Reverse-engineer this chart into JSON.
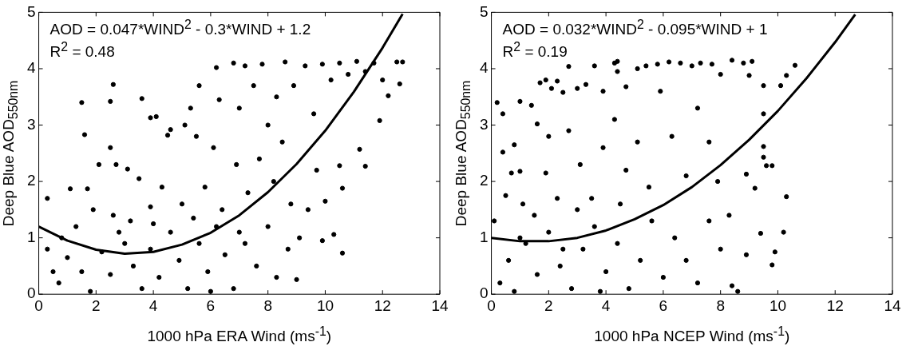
{
  "chart_data": [
    {
      "type": "scatter",
      "xlabel": "1000 hPa ERA Wind (ms$^{-1}$)",
      "ylabel": "Deep Blue AOD$_{550nm}$",
      "xlim": [
        0,
        14
      ],
      "ylim": [
        0,
        5
      ],
      "xticks": [
        0,
        2,
        4,
        6,
        8,
        10,
        12,
        14
      ],
      "yticks": [
        0,
        1,
        2,
        3,
        4,
        5
      ],
      "grid": false,
      "legend": false,
      "marker": "circle",
      "annotations": [
        "AOD = 0.047*WIND$^{2}$ - 0.3*WIND + 1.2",
        "R$^{2}$ = 0.48"
      ],
      "series": [
        {
          "type": "scatter",
          "color": "#000000",
          "x": [
            0.3,
            1.1,
            1.5,
            1.6,
            1.7,
            2.1,
            2.5,
            2.5,
            2.6,
            2.7,
            3.1,
            3.6,
            3.5,
            3.9,
            4.1,
            4.5,
            4.6,
            5.1,
            5.3,
            5.6,
            5.5,
            6.2,
            6.3,
            6.8,
            6.1,
            7.2,
            7.0,
            7.5,
            7.8,
            8.0,
            8.3,
            8.6,
            8.5,
            8.9,
            9.3,
            9.6,
            9.9,
            10.2,
            10.5,
            10.8,
            11.1,
            11.4,
            11.7,
            12.0,
            12.2,
            12.5,
            12.6,
            12.7,
            11.9,
            11.2,
            11.4,
            10.6,
            10.5,
            10.0,
            10.3,
            10.6,
            9.9,
            9.0,
            9.4,
            9.7,
            8.8,
            8.2,
            7.7,
            7.3,
            6.9,
            6.4,
            5.8,
            5.0,
            4.3,
            3.9,
            3.2,
            2.6,
            1.9,
            1.3,
            0.8,
            0.3,
            0.5,
            0.7,
            1.0,
            1.5,
            1.8,
            2.2,
            2.5,
            3.0,
            3.3,
            3.6,
            3.9,
            4.2,
            4.6,
            4.9,
            5.2,
            5.6,
            5.9,
            6.2,
            6.5,
            6.8,
            7.2,
            7.6,
            8.0,
            8.3,
            8.7,
            9.1,
            6.0,
            2.8,
            4.0,
            5.4,
            7.0
          ],
          "values": [
            1.7,
            1.87,
            3.4,
            2.83,
            1.87,
            2.3,
            3.42,
            2.6,
            3.72,
            2.3,
            2.22,
            3.47,
            2.05,
            3.13,
            3.15,
            2.82,
            2.92,
            3.0,
            3.3,
            3.7,
            2.8,
            4.02,
            3.45,
            4.1,
            2.6,
            4.05,
            3.3,
            3.7,
            4.08,
            3.0,
            3.5,
            4.12,
            2.7,
            3.7,
            4.05,
            3.2,
            4.08,
            3.8,
            4.1,
            3.9,
            4.13,
            3.95,
            4.1,
            3.8,
            3.52,
            4.12,
            3.73,
            4.12,
            3.08,
            2.57,
            2.27,
            1.88,
            2.28,
            1.65,
            1.06,
            0.73,
            0.95,
            0.26,
            1.5,
            2.2,
            1.6,
            2.0,
            2.4,
            1.8,
            2.3,
            1.5,
            1.9,
            1.6,
            1.9,
            1.55,
            1.3,
            1.4,
            1.5,
            1.2,
            1.0,
            0.8,
            0.4,
            0.2,
            0.65,
            0.4,
            0.05,
            0.75,
            0.35,
            0.9,
            0.5,
            0.1,
            0.8,
            0.3,
            1.1,
            0.6,
            0.1,
            0.9,
            0.4,
            1.2,
            0.7,
            0.1,
            0.9,
            0.5,
            1.2,
            0.3,
            0.8,
            1.0,
            0.05,
            1.1,
            1.25,
            1.35,
            1.1
          ]
        },
        {
          "type": "line",
          "color": "#000000",
          "marker": "none",
          "x": [
            0,
            1,
            2,
            3,
            4,
            5,
            6,
            7,
            8,
            9,
            10,
            11,
            12,
            12.7
          ],
          "values": [
            1.2,
            0.95,
            0.79,
            0.72,
            0.75,
            0.88,
            1.09,
            1.4,
            1.81,
            2.31,
            2.9,
            3.59,
            4.37,
            4.97
          ]
        }
      ]
    },
    {
      "type": "scatter",
      "xlabel": "1000 hPa NCEP Wind (ms$^{-1}$)",
      "ylabel": "Deep Blue AOD$_{550nm}$",
      "xlim": [
        0,
        14
      ],
      "ylim": [
        0,
        5
      ],
      "xticks": [
        0,
        2,
        4,
        6,
        8,
        10,
        12,
        14
      ],
      "yticks": [
        0,
        1,
        2,
        3,
        4,
        5
      ],
      "grid": false,
      "legend": false,
      "marker": "circle",
      "annotations": [
        "AOD = 0.032*WIND$^{2}$ - 0.095*WIND + 1",
        "R$^{2}$ = 0.19"
      ],
      "series": [
        {
          "type": "scatter",
          "color": "#000000",
          "x": [
            0.1,
            0.2,
            0.4,
            0.4,
            0.5,
            0.7,
            1.0,
            1.0,
            0.8,
            1.4,
            1.6,
            1.7,
            1.9,
            2.1,
            2.3,
            2.0,
            2.5,
            2.7,
            3.0,
            3.3,
            3.6,
            3.9,
            4.3,
            4.4,
            4.4,
            4.7,
            5.1,
            5.4,
            5.8,
            6.2,
            6.6,
            7.0,
            7.3,
            7.7,
            8.0,
            8.4,
            8.8,
            9.1,
            9.0,
            9.5,
            9.5,
            9.5,
            9.5,
            9.6,
            9.8,
            10.1,
            10.3,
            10.6,
            10.3,
            10.2,
            9.9,
            9.8,
            9.4,
            9.2,
            8.9,
            8.6,
            8.4,
            8.9,
            8.3,
            7.9,
            7.6,
            7.2,
            6.8,
            6.3,
            5.9,
            5.5,
            5.1,
            4.7,
            4.3,
            3.9,
            3.5,
            3.1,
            2.7,
            2.3,
            1.9,
            1.5,
            1.1,
            0.6,
            0.3,
            0.8,
            1.2,
            1.6,
            2.0,
            2.4,
            2.8,
            3.2,
            3.6,
            4.0,
            4.4,
            4.8,
            5.2,
            5.6,
            6.0,
            6.4,
            6.8,
            7.2,
            7.6,
            8.0,
            3.0,
            4.5,
            1.0,
            2.5,
            3.8
          ],
          "values": [
            1.3,
            3.4,
            2.52,
            3.2,
            1.75,
            2.15,
            3.42,
            2.18,
            2.65,
            3.35,
            3.02,
            3.75,
            3.8,
            3.65,
            3.78,
            2.8,
            3.58,
            4.04,
            3.65,
            3.72,
            4.05,
            3.6,
            4.1,
            4.13,
            3.95,
            3.68,
            4.0,
            4.05,
            4.08,
            4.12,
            4.1,
            4.05,
            4.1,
            4.08,
            3.9,
            4.15,
            4.1,
            4.13,
            3.88,
            3.7,
            3.2,
            2.62,
            2.43,
            2.28,
            2.28,
            3.7,
            3.88,
            4.06,
            1.73,
            1.1,
            0.75,
            0.52,
            1.08,
            1.88,
            2.13,
            0.05,
            0.15,
            0.7,
            1.4,
            2.0,
            2.7,
            3.3,
            2.1,
            2.8,
            3.6,
            1.9,
            2.7,
            2.2,
            3.1,
            2.6,
            1.7,
            2.3,
            2.9,
            1.7,
            2.15,
            1.4,
            1.6,
            0.6,
            0.2,
            0.05,
            0.9,
            0.35,
            1.1,
            0.5,
            0.1,
            0.8,
            1.2,
            0.4,
            0.9,
            0.1,
            0.6,
            1.3,
            0.3,
            1.0,
            0.6,
            0.2,
            1.3,
            0.8,
            1.5,
            1.6,
            1.0,
            0.8,
            0.05
          ]
        },
        {
          "type": "line",
          "color": "#000000",
          "marker": "none",
          "x": [
            0,
            1,
            2,
            3,
            4,
            5,
            6,
            7,
            8,
            9,
            10,
            11,
            12,
            12.7
          ],
          "values": [
            1,
            0.94,
            0.94,
            1,
            1.13,
            1.33,
            1.58,
            1.9,
            2.29,
            2.74,
            3.25,
            3.83,
            4.47,
            4.96
          ]
        }
      ]
    }
  ]
}
